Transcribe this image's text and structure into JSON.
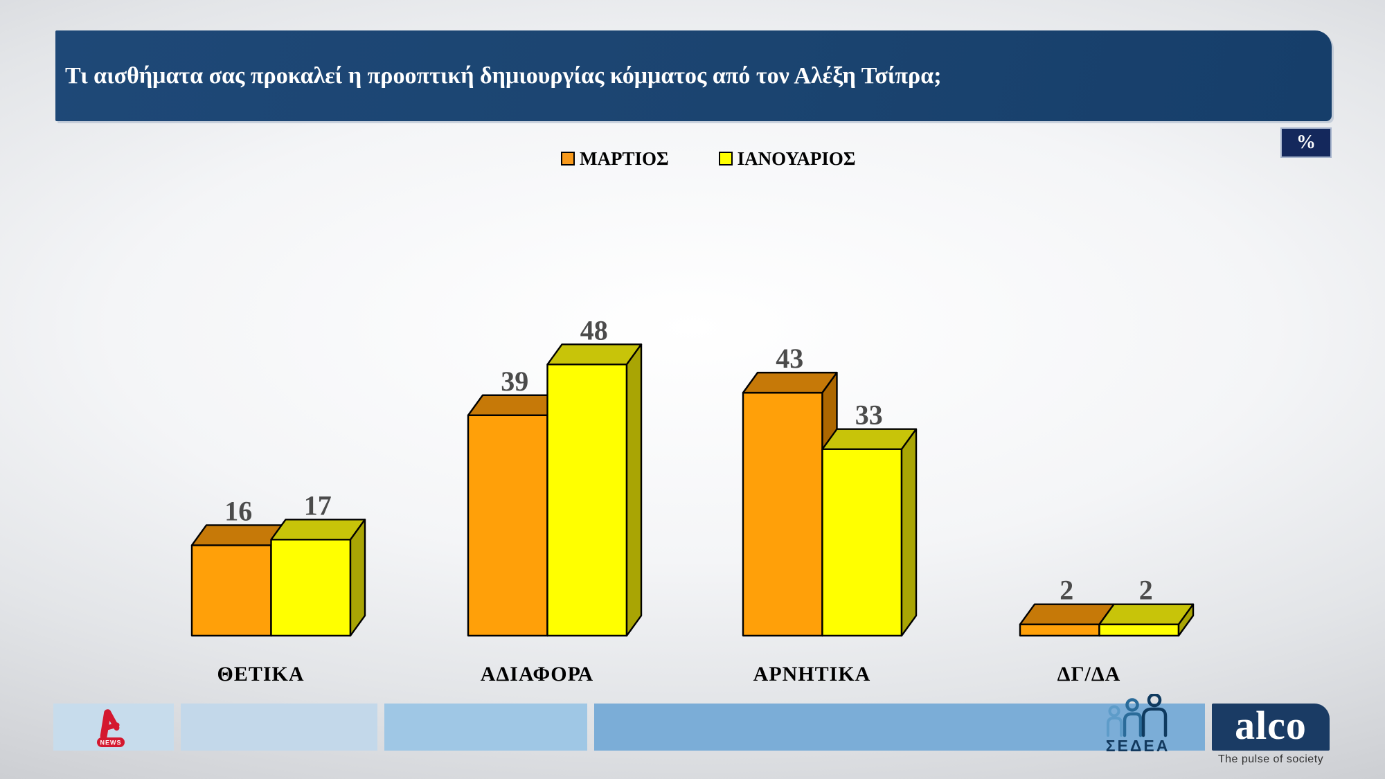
{
  "title": "Τι αισθήματα σας προκαλεί η προοπτική δημιουργίας κόμματος από τον Αλέξη Τσίπρα;",
  "percent_badge": "%",
  "legend": {
    "items": [
      {
        "label": "ΜΑΡΤΙΟΣ",
        "color": "#F89A1C"
      },
      {
        "label": "ΙΑΝΟΥΑΡΙΟΣ",
        "color": "#FFFF00"
      }
    ]
  },
  "chart_data": {
    "type": "bar",
    "style": "3d-column-pairs",
    "title": "Τι αισθήματα σας προκαλεί η προοπτική δημιουργίας κόμματος από τον Αλέξη Τσίπρα;",
    "unit": "%",
    "categories": [
      "ΘΕΤΙΚΑ",
      "ΑΔΙΑΦΟΡΑ",
      "ΑΡΝΗΤΙΚΑ",
      "ΔΓ/ΔΑ"
    ],
    "series": [
      {
        "name": "ΜΑΡΤΙΟΣ",
        "values": [
          16,
          39,
          43,
          2
        ],
        "front_color": "#FFA009",
        "top_color": "#C67908",
        "side_color": "#AD6700"
      },
      {
        "name": "ΙΑΝΟΥΑΡΙΟΣ",
        "values": [
          17,
          48,
          33,
          2
        ],
        "front_color": "#FFFF00",
        "top_color": "#C8C409",
        "side_color": "#A9A504"
      }
    ],
    "ylim": [
      0,
      50
    ],
    "grid": false,
    "value_labels": true,
    "legend_position": "top-center"
  },
  "footer": {
    "alpha_news_label": "NEWS",
    "sedea_label": "ΣΕΔΕΑ",
    "alco_label": "alco",
    "alco_tagline": "The pulse of society"
  },
  "colors": {
    "title_bar": "#1B4470",
    "percent_badge_bg": "#14285C",
    "value_label": "#4B4B4B",
    "category_label": "#000000",
    "bar_outline": "#000000",
    "alpha_red": "#D4182F",
    "alco_navy": "#1A3B64",
    "sedea_navy": "#12395E",
    "sedea_figures": [
      "#5E9CC9",
      "#2A6B99",
      "#0F3A5F"
    ],
    "footer_segments": [
      "#C7DCEC",
      "#C3D8EA",
      "#9FC7E5",
      "#7BADD7"
    ]
  }
}
